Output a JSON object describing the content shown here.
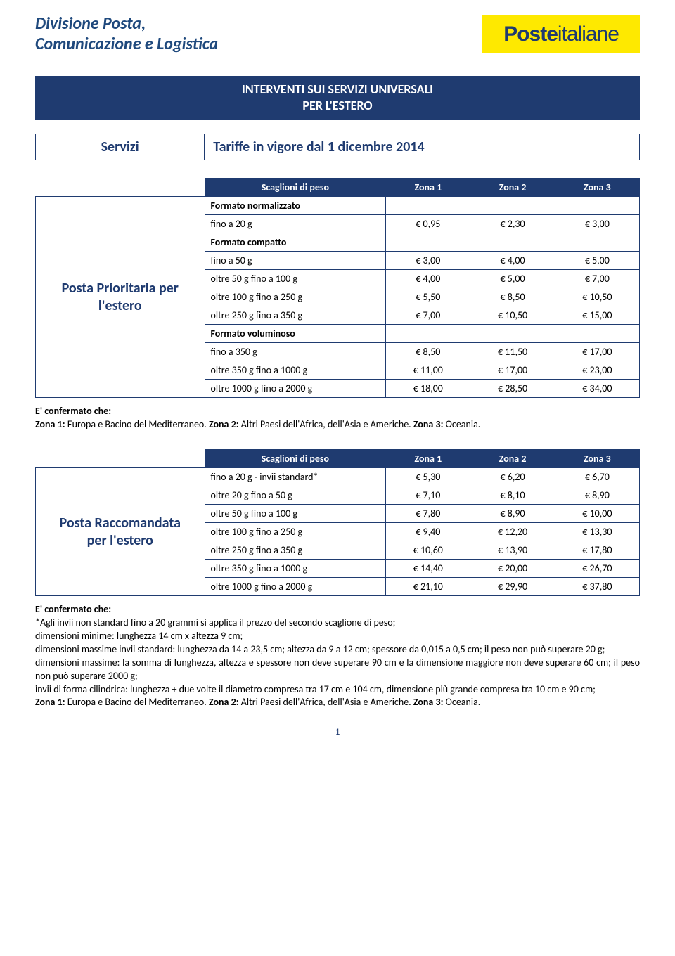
{
  "colors": {
    "brand_blue": "#1f3b70",
    "brand_yellow": "#fee900",
    "heading_blue": "#1f497d",
    "white": "#ffffff",
    "black": "#000000"
  },
  "typography": {
    "base_family": "Calibri, Segoe UI, Arial, sans-serif",
    "base_size_pt": 11,
    "heading_size_pt": 18,
    "service_name_size_pt": 15
  },
  "header": {
    "division_line1": "Divisione Posta,",
    "division_line2": "Comunicazione e Logistica",
    "logo_text_bold": "Poste",
    "logo_text_light": "italiane"
  },
  "main_title": {
    "line1": "INTERVENTI SUI SERVIZI UNIVERSALI",
    "line2": "PER L'ESTERO"
  },
  "tariff_bar": {
    "left": "Servizi",
    "right": "Tariffe in vigore dal 1 dicembre 2014"
  },
  "columns": {
    "weight": "Scaglioni di peso",
    "z1": "Zona 1",
    "z2": "Zona 2",
    "z3": "Zona 3"
  },
  "table1": {
    "service_name_line1": "Posta Prioritaria per",
    "service_name_line2": "l'estero",
    "rows": [
      {
        "label": "Formato normalizzato",
        "section": true,
        "z1": "",
        "z2": "",
        "z3": ""
      },
      {
        "label": "fino a 20 g",
        "z1": "€ 0,95",
        "z2": "€ 2,30",
        "z3": "€ 3,00"
      },
      {
        "label": "Formato compatto",
        "section": true,
        "z1": "",
        "z2": "",
        "z3": ""
      },
      {
        "label": "fino a 50 g",
        "z1": "€ 3,00",
        "z2": "€ 4,00",
        "z3": "€ 5,00"
      },
      {
        "label": "oltre 50 g fino a 100 g",
        "z1": "€ 4,00",
        "z2": "€ 5,00",
        "z3": "€ 7,00"
      },
      {
        "label": "oltre 100 g fino a 250 g",
        "z1": "€ 5,50",
        "z2": "€ 8,50",
        "z3": "€ 10,50"
      },
      {
        "label": "oltre 250 g fino a 350 g",
        "z1": "€ 7,00",
        "z2": "€ 10,50",
        "z3": "€ 15,00"
      },
      {
        "label": "Formato voluminoso",
        "section": true,
        "z1": "",
        "z2": "",
        "z3": ""
      },
      {
        "label": "fino a 350 g",
        "z1": "€ 8,50",
        "z2": "€ 11,50",
        "z3": "€ 17,00"
      },
      {
        "label": "oltre 350 g fino a 1000 g",
        "z1": "€ 11,00",
        "z2": "€ 17,00",
        "z3": "€ 23,00"
      },
      {
        "label": "oltre 1000 g fino a 2000 g",
        "z1": "€ 18,00",
        "z2": "€ 28,50",
        "z3": "€ 34,00"
      }
    ]
  },
  "notes1": {
    "lead": "E' confermato che:",
    "body_prefix": "Zona 1:",
    "body_z1": " Europa e Bacino del Mediterraneo. ",
    "body_z2_label": "Zona 2:",
    "body_z2": " Altri Paesi dell'Africa, dell'Asia e Americhe. ",
    "body_z3_label": "Zona 3:",
    "body_z3": " Oceania."
  },
  "table2": {
    "service_name_line1": "Posta Raccomandata",
    "service_name_line2": "per l'estero",
    "rows": [
      {
        "label": "fino a 20 g - invii standard*",
        "z1": "€ 5,30",
        "z2": "€ 6,20",
        "z3": "€ 6,70"
      },
      {
        "label": "oltre 20 g fino a 50 g",
        "z1": "€ 7,10",
        "z2": "€ 8,10",
        "z3": "€ 8,90"
      },
      {
        "label": "oltre 50 g fino a 100 g",
        "z1": "€ 7,80",
        "z2": "€ 8,90",
        "z3": "€ 10,00"
      },
      {
        "label": "oltre 100 g fino a 250 g",
        "z1": "€ 9,40",
        "z2": "€ 12,20",
        "z3": "€ 13,30"
      },
      {
        "label": "oltre 250 g fino a 350 g",
        "z1": "€ 10,60",
        "z2": "€ 13,90",
        "z3": "€ 17,80"
      },
      {
        "label": "oltre 350 g fino a 1000 g",
        "z1": "€ 14,40",
        "z2": "€ 20,00",
        "z3": "€ 26,70"
      },
      {
        "label": "oltre 1000 g fino a 2000 g",
        "z1": "€ 21,10",
        "z2": "€ 29,90",
        "z3": "€ 37,80"
      }
    ]
  },
  "notes2": {
    "lead": "E' confermato che:",
    "lines": [
      "*Agli invii non standard fino a 20 grammi si applica il prezzo del secondo scaglione di peso;",
      "dimensioni minime: lunghezza 14 cm x altezza 9 cm;",
      "dimensioni massime invii standard: lunghezza da 14 a 23,5 cm; altezza da 9 a 12 cm; spessore da 0,015 a 0,5 cm; il peso non può superare 20 g;",
      "dimensioni massime: la somma di lunghezza, altezza e spessore non deve superare 90 cm e la dimensione maggiore non deve superare 60 cm; il peso non può superare 2000 g;",
      "invii di forma cilindrica: lunghezza + due volte il diametro compresa tra 17 cm e 104 cm, dimensione più grande compresa tra 10 cm e 90 cm;"
    ],
    "zone_z1_label": "Zona 1:",
    "zone_z1": " Europa e Bacino del Mediterraneo. ",
    "zone_z2_label": "Zona 2:",
    "zone_z2": " Altri Paesi dell'Africa, dell'Asia e Americhe. ",
    "zone_z3_label": "Zona 3:",
    "zone_z3": " Oceania."
  },
  "page_number": "1"
}
